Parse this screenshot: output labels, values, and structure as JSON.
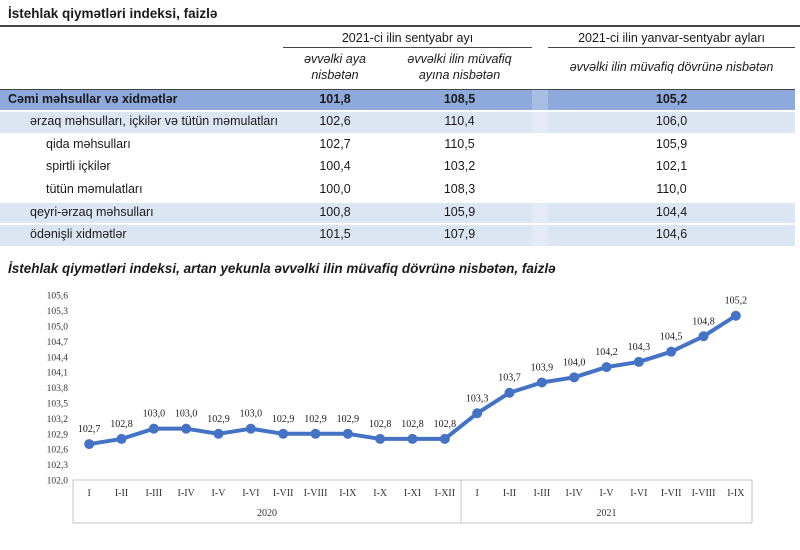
{
  "table_section": {
    "title": "İstehlak qiymətləri indeksi, faizlə",
    "col_groups": [
      {
        "label": "2021-ci ilin sentyabr ayı"
      },
      {
        "label": "2021-ci ilin yanvar-sentyabr ayları"
      }
    ],
    "sub_headers": [
      "əvvəlki aya nisbətən",
      "əvvəlki ilin müvafiq ayına nisbətən",
      "əvvəlki ilin müvafiq dövrünə nisbətən"
    ],
    "rows": [
      {
        "label": "Cəmi məhsullar və xidmətlər",
        "values": [
          "101,8",
          "108,5",
          "105,2"
        ],
        "level": 0,
        "style": "total"
      },
      {
        "label": "ərzaq məhsulları, içkilər və tütün məmulatları",
        "values": [
          "102,6",
          "110,4",
          "106,0"
        ],
        "level": 1,
        "style": "category"
      },
      {
        "label": "qida məhsulları",
        "values": [
          "102,7",
          "110,5",
          "105,9"
        ],
        "level": 2,
        "style": "plain"
      },
      {
        "label": "spirtli içkilər",
        "values": [
          "100,4",
          "103,2",
          "102,1"
        ],
        "level": 2,
        "style": "plain"
      },
      {
        "label": "tütün məmulatları",
        "values": [
          "100,0",
          "108,3",
          "110,0"
        ],
        "level": 2,
        "style": "plain"
      },
      {
        "label": "qeyri-ərzaq məhsulları",
        "values": [
          "100,8",
          "105,9",
          "104,4"
        ],
        "level": 1,
        "style": "category"
      },
      {
        "label": "ödənişli xidmətlər",
        "values": [
          "101,5",
          "107,9",
          "104,6"
        ],
        "level": 1,
        "style": "category"
      }
    ],
    "colors": {
      "total_row_bg": "#8EA9DB",
      "category_row_bg": "#DCE6F2",
      "rule_color": "#454545"
    }
  },
  "chart_section": {
    "title": "İstehlak qiymətləri indeksi, artan yekunla əvvəlki ilin müvafiq dövrünə nisbətən, faizlə"
  },
  "chart_data": {
    "type": "line",
    "title": "İstehlak qiymətləri indeksi, artan yekunla əvvəlki ilin müvafiq dövrünə nisbətən, faizlə",
    "category_groups": [
      {
        "label": "2020",
        "categories": [
          "I",
          "I-II",
          "I-III",
          "I-IV",
          "I-V",
          "I-VI",
          "I-VII",
          "I-VIII",
          "I-IX",
          "I-X",
          "I-XI",
          "I-XII"
        ]
      },
      {
        "label": "2021",
        "categories": [
          "I",
          "I-II",
          "I-III",
          "I-IV",
          "I-V",
          "I-VI",
          "I-VII",
          "I-VIII",
          "I-IX"
        ]
      }
    ],
    "series": [
      {
        "name": "İstehlak qiymətləri indeksi",
        "values": [
          102.7,
          102.8,
          103.0,
          103.0,
          102.9,
          103.0,
          102.9,
          102.9,
          102.9,
          102.8,
          102.8,
          102.8,
          103.3,
          103.7,
          103.9,
          104.0,
          104.2,
          104.3,
          104.5,
          104.8,
          105.2
        ]
      }
    ],
    "point_labels": [
      "102,7",
      "102,8",
      "103,0",
      "103,0",
      "102,9",
      "103,0",
      "102,9",
      "102,9",
      "102,9",
      "102,8",
      "102,8",
      "102,8",
      "103,3",
      "103,7",
      "103,9",
      "104,0",
      "104,2",
      "104,3",
      "104,5",
      "104,8",
      "105,2"
    ],
    "y_ticks": [
      "102,0",
      "102,3",
      "102,6",
      "102,9",
      "103,2",
      "103,5",
      "103,8",
      "104,1",
      "104,4",
      "104,7",
      "105,0",
      "105,3",
      "105,6"
    ],
    "ylim": [
      102.0,
      105.6
    ],
    "grid": false,
    "legend": "none",
    "line_color": "#4472C4",
    "axis_box_color": "#C3C3C3",
    "axis_text_color": "#333333"
  }
}
